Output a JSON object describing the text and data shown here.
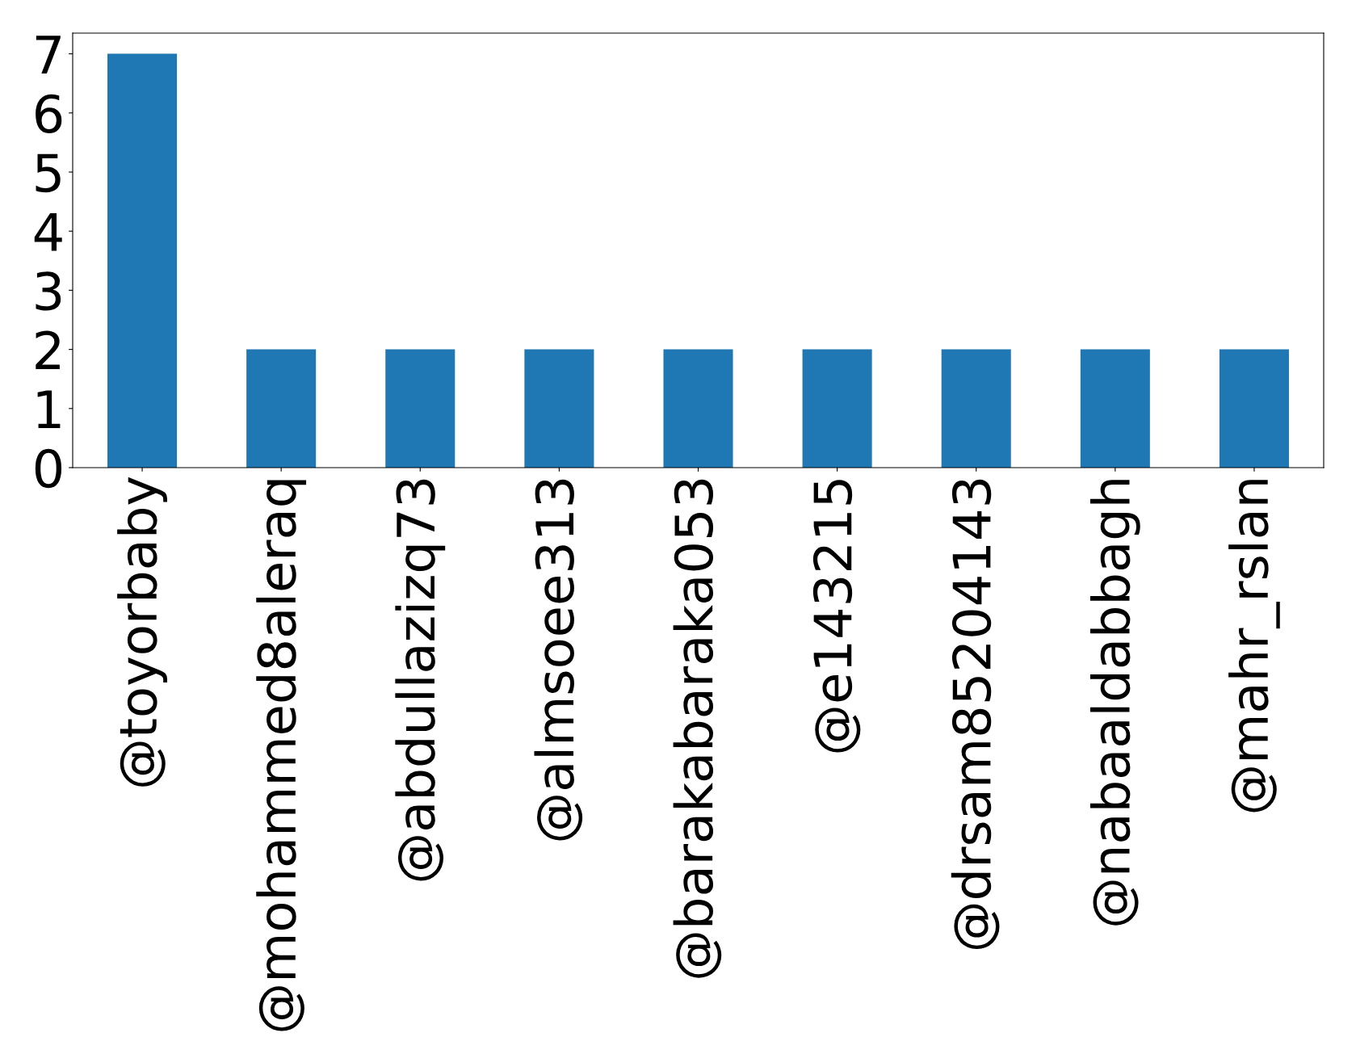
{
  "chart_data": {
    "type": "bar",
    "categories": [
      "@toyorbaby",
      "@mohammed8aleraq",
      "@abdullazizq73",
      "@almsoee313",
      "@barakabaraka053",
      "@e143215",
      "@drsam85204143",
      "@nabaaldabbagh",
      "@mahr_rslan"
    ],
    "values": [
      7,
      2,
      2,
      2,
      2,
      2,
      2,
      2,
      2
    ],
    "color": "#1f77b4",
    "ylim": [
      0,
      7.35
    ],
    "yticks": [
      0,
      1,
      2,
      3,
      4,
      5,
      6,
      7
    ],
    "grid": false
  }
}
